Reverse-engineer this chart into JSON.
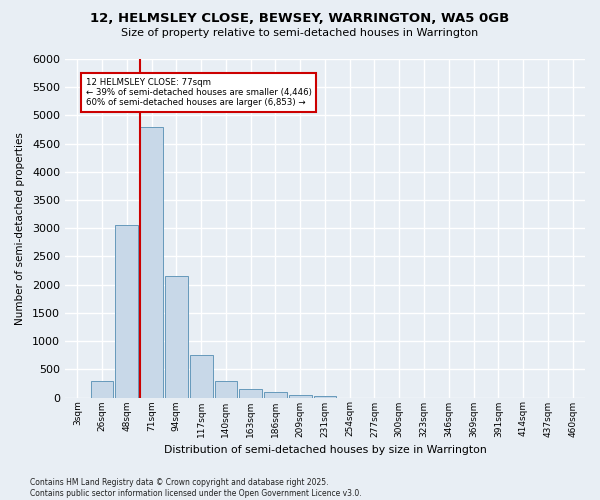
{
  "title": "12, HELMSLEY CLOSE, BEWSEY, WARRINGTON, WA5 0GB",
  "subtitle": "Size of property relative to semi-detached houses in Warrington",
  "xlabel": "Distribution of semi-detached houses by size in Warrington",
  "ylabel": "Number of semi-detached properties",
  "bins": [
    "3sqm",
    "26sqm",
    "48sqm",
    "71sqm",
    "94sqm",
    "117sqm",
    "140sqm",
    "163sqm",
    "186sqm",
    "209sqm",
    "231sqm",
    "254sqm",
    "277sqm",
    "300sqm",
    "323sqm",
    "346sqm",
    "369sqm",
    "391sqm",
    "414sqm",
    "437sqm",
    "460sqm"
  ],
  "bar_values": [
    0,
    300,
    3050,
    4800,
    2150,
    750,
    300,
    150,
    100,
    50,
    20,
    0,
    0,
    0,
    0,
    0,
    0,
    0,
    0,
    0,
    0
  ],
  "bar_color": "#c8d8e8",
  "bar_edge_color": "#6699bb",
  "background_color": "#e8eef4",
  "grid_color": "#ffffff",
  "ylim": [
    0,
    6000
  ],
  "yticks": [
    0,
    500,
    1000,
    1500,
    2000,
    2500,
    3000,
    3500,
    4000,
    4500,
    5000,
    5500,
    6000
  ],
  "property_label": "12 HELMSLEY CLOSE: 77sqm",
  "smaller_pct": "39%",
  "smaller_count": "4,446",
  "larger_pct": "60%",
  "larger_count": "6,853",
  "vline_color": "#cc0000",
  "vline_bin_index": 3,
  "footnote": "Contains HM Land Registry data © Crown copyright and database right 2025.\nContains public sector information licensed under the Open Government Licence v3.0."
}
